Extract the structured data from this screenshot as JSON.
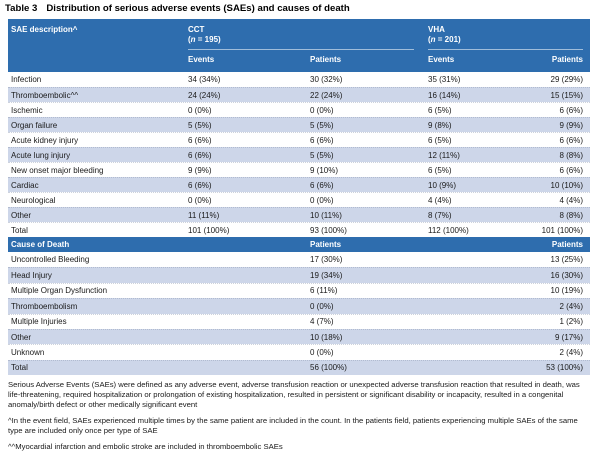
{
  "title": {
    "label": "Table 3",
    "text": "Distribution of serious adverse events (SAEs) and causes of death"
  },
  "table": {
    "sae_header": {
      "description_label": "SAE description^",
      "groups": [
        {
          "name": "CCT",
          "n_prefix": "(",
          "n_symbol": "n",
          "n_suffix": " = 195)"
        },
        {
          "name": "VHA",
          "n_prefix": "(",
          "n_symbol": "n",
          "n_suffix": " = 201)"
        }
      ],
      "columns": [
        "Events",
        "Patients",
        "Events",
        "Patients"
      ]
    },
    "sae_rows": [
      {
        "label": "Infection",
        "cct_events": "34 (34%)",
        "cct_patients": "30 (32%)",
        "vha_events": "35 (31%)",
        "vha_patients": "29 (29%)"
      },
      {
        "label": "Thromboembolic^^",
        "cct_events": "24 (24%)",
        "cct_patients": "22 (24%)",
        "vha_events": "16 (14%)",
        "vha_patients": "15 (15%)"
      },
      {
        "label": "Ischemic",
        "cct_events": "0 (0%)",
        "cct_patients": "0 (0%)",
        "vha_events": "6 (5%)",
        "vha_patients": "6 (6%)"
      },
      {
        "label": "Organ failure",
        "cct_events": "5 (5%)",
        "cct_patients": "5 (5%)",
        "vha_events": "9 (8%)",
        "vha_patients": "9 (9%)"
      },
      {
        "label": "Acute kidney injury",
        "cct_events": "6 (6%)",
        "cct_patients": "6 (6%)",
        "vha_events": "6 (5%)",
        "vha_patients": "6 (6%)"
      },
      {
        "label": "Acute lung injury",
        "cct_events": "6 (6%)",
        "cct_patients": "5 (5%)",
        "vha_events": "12 (11%)",
        "vha_patients": "8 (8%)"
      },
      {
        "label": "New onset major bleeding",
        "cct_events": "9 (9%)",
        "cct_patients": "9 (10%)",
        "vha_events": "6 (5%)",
        "vha_patients": "6 (6%)"
      },
      {
        "label": "Cardiac",
        "cct_events": "6 (6%)",
        "cct_patients": "6 (6%)",
        "vha_events": "10 (9%)",
        "vha_patients": "10 (10%)"
      },
      {
        "label": "Neurological",
        "cct_events": "0 (0%)",
        "cct_patients": "0 (0%)",
        "vha_events": "4 (4%)",
        "vha_patients": "4 (4%)"
      },
      {
        "label": "Other",
        "cct_events": "11 (11%)",
        "cct_patients": "10 (11%)",
        "vha_events": "8 (7%)",
        "vha_patients": "8 (8%)"
      },
      {
        "label": "Total",
        "cct_events": "101 (100%)",
        "cct_patients": "93 (100%)",
        "vha_events": "112 (100%)",
        "vha_patients": "101 (100%)"
      }
    ],
    "death_header": {
      "label": "Cause of Death",
      "cct_patients_label": "Patients",
      "vha_patients_label": "Patients"
    },
    "death_rows": [
      {
        "label": "Uncontrolled Bleeding",
        "cct_patients": "17 (30%)",
        "vha_patients": "13 (25%)"
      },
      {
        "label": "Head Injury",
        "cct_patients": "19 (34%)",
        "vha_patients": "16 (30%)"
      },
      {
        "label": "Multiple Organ Dysfunction",
        "cct_patients": "6 (11%)",
        "vha_patients": "10 (19%)"
      },
      {
        "label": "Thromboembolism",
        "cct_patients": "0 (0%)",
        "vha_patients": "2 (4%)"
      },
      {
        "label": "Multiple Injuries",
        "cct_patients": "4 (7%)",
        "vha_patients": "1 (2%)"
      },
      {
        "label": "Other",
        "cct_patients": "10 (18%)",
        "vha_patients": "9 (17%)"
      },
      {
        "label": "Unknown",
        "cct_patients": "0 (0%)",
        "vha_patients": "2 (4%)"
      },
      {
        "label": "Total",
        "cct_patients": "56 (100%)",
        "vha_patients": "53 (100%)"
      }
    ]
  },
  "footnotes": [
    "Serious Adverse Events (SAEs) were defined as any adverse event, adverse transfusion reaction or unexpected adverse transfusion reaction that resulted in death, was life-threatening, required hospitalization or prolongation of existing hospitalization, resulted in persistent or significant disability or incapacity, resulted in a congenital anomaly/birth defect or other medically significant event",
    "^In the event field, SAEs experienced multiple times by the same patient are included in the count. In the patients field, patients experiencing multiple SAEs of the same type are included only once per type of SAE",
    "^^Myocardial infarction and embolic stroke are included in thromboembolic SAEs"
  ],
  "colors": {
    "header_blue": "#2e6dae",
    "stripe": "#cdd6e9",
    "header_text": "#ffffff",
    "body_text": "#1a1a1a"
  }
}
